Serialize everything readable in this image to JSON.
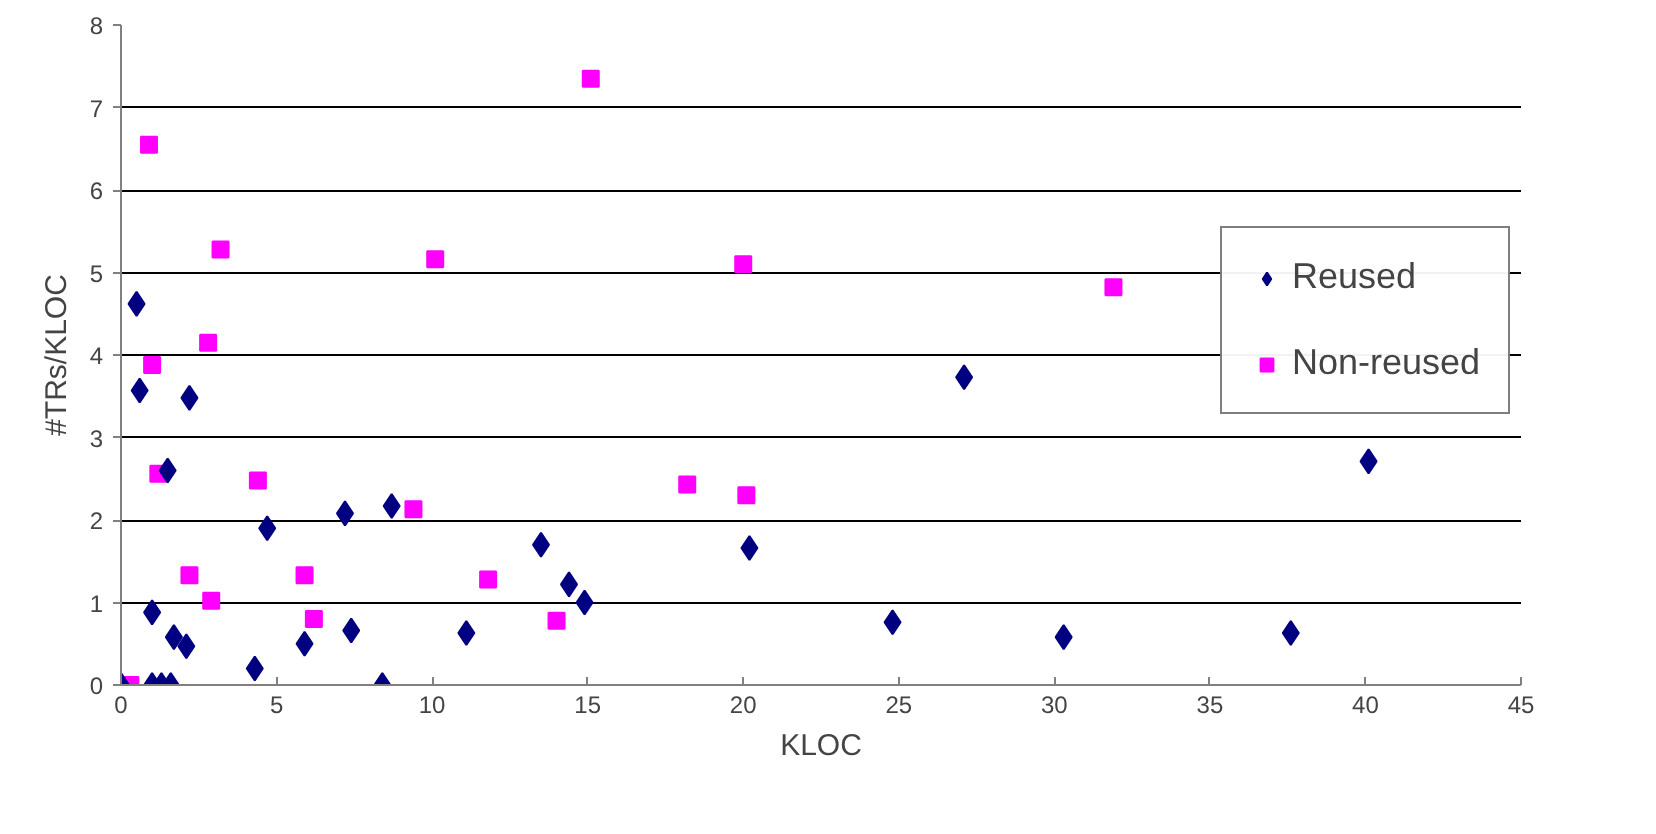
{
  "chart_data": {
    "type": "scatter",
    "xlabel": "KLOC",
    "ylabel": "#TRs/KLOC",
    "xlim": [
      0,
      45
    ],
    "ylim": [
      0,
      8
    ],
    "xticks": [
      0,
      5,
      10,
      15,
      20,
      25,
      30,
      35,
      40,
      45
    ],
    "yticks": [
      0,
      1,
      2,
      3,
      4,
      5,
      6,
      7,
      8
    ],
    "grid": "y",
    "legend": "right",
    "series": [
      {
        "name": "Reused",
        "color": "#000080",
        "marker": "diamond",
        "x": [
          0,
          0.5,
          0.6,
          1.0,
          1.0,
          1.3,
          1.6,
          1.5,
          1.7,
          2.1,
          2.2,
          4.3,
          4.7,
          5.9,
          7.2,
          7.4,
          8.4,
          8.7,
          11.1,
          13.5,
          14.4,
          14.9,
          20.2,
          24.8,
          27.1,
          30.3,
          37.6,
          40.1
        ],
        "values": [
          0,
          4.62,
          3.57,
          0.88,
          0,
          0,
          0,
          2.6,
          0.58,
          0.47,
          3.48,
          0.2,
          1.9,
          0.5,
          2.08,
          0.66,
          0,
          2.17,
          0.63,
          1.7,
          1.22,
          1.0,
          1.66,
          0.76,
          3.73,
          0.58,
          0.63,
          2.71
        ]
      },
      {
        "name": "Non-reused",
        "color": "#ff00ff",
        "marker": "square",
        "x": [
          0.3,
          0.9,
          1.0,
          1.2,
          2.2,
          2.8,
          2.9,
          3.2,
          4.4,
          5.9,
          6.2,
          9.4,
          10.1,
          11.8,
          14.0,
          15.1,
          18.2,
          20.0,
          20.1,
          31.9
        ],
        "values": [
          0,
          6.55,
          3.88,
          2.56,
          1.33,
          4.15,
          1.02,
          5.28,
          2.48,
          1.33,
          0.8,
          2.13,
          5.16,
          1.28,
          0.78,
          7.35,
          2.43,
          5.1,
          2.3,
          4.82
        ]
      }
    ]
  }
}
